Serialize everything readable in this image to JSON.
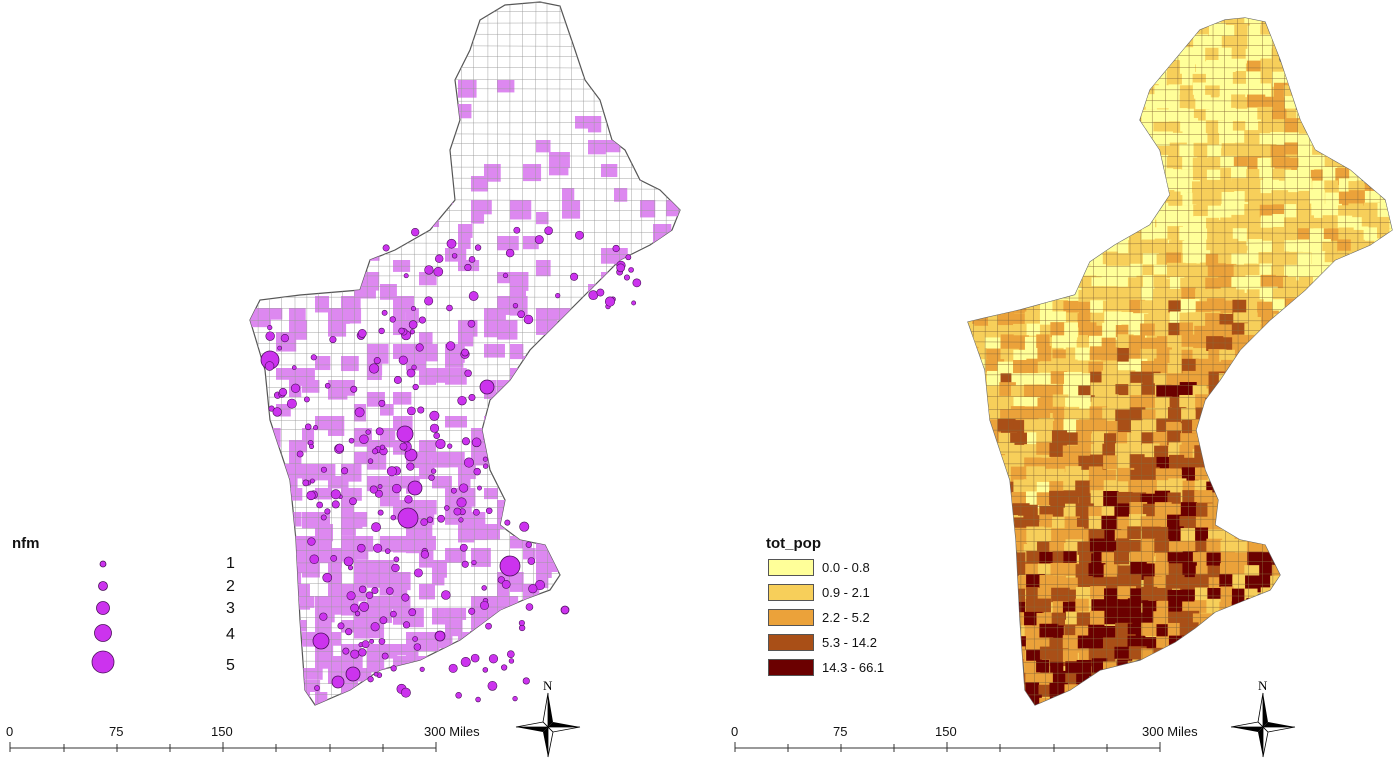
{
  "left_map": {
    "legend": {
      "title": "nfm",
      "items": [
        "1",
        "2",
        "3",
        "4",
        "5"
      ],
      "symbol_color": "#cc33ee",
      "fill_color": "#dd88f0"
    },
    "scale": {
      "labels": [
        "0",
        "75",
        "150",
        "300 Miles"
      ]
    },
    "north_label": "N"
  },
  "right_map": {
    "legend": {
      "title": "tot_pop",
      "classes": [
        {
          "label": "0.0 - 0.8",
          "color": "#ffff99"
        },
        {
          "label": "0.9 - 2.1",
          "color": "#f7cf5a"
        },
        {
          "label": "2.2 - 5.2",
          "color": "#eba23a"
        },
        {
          "label": "5.3 - 14.2",
          "color": "#a94f17"
        },
        {
          "label": "14.3 - 66.1",
          "color": "#6b0000"
        }
      ]
    },
    "scale": {
      "labels": [
        "0",
        "75",
        "150",
        "300 Miles"
      ]
    },
    "north_label": "N"
  }
}
